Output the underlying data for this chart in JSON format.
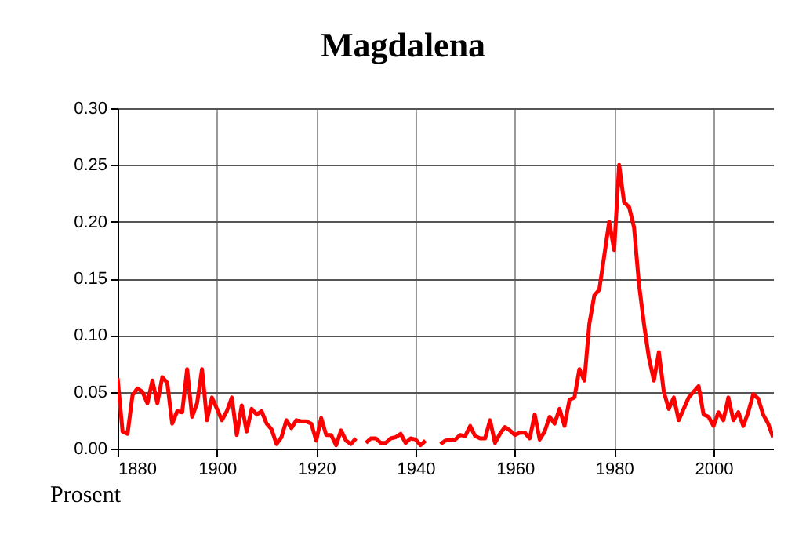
{
  "chart_data": {
    "type": "line",
    "title": "Magdalena",
    "annotations": [
      "Prosent"
    ],
    "x": [
      1880,
      1881,
      1882,
      1883,
      1884,
      1885,
      1886,
      1887,
      1888,
      1889,
      1890,
      1891,
      1892,
      1893,
      1894,
      1895,
      1896,
      1897,
      1898,
      1899,
      1900,
      1901,
      1902,
      1903,
      1904,
      1905,
      1906,
      1907,
      1908,
      1909,
      1910,
      1911,
      1912,
      1913,
      1914,
      1915,
      1916,
      1917,
      1918,
      1919,
      1920,
      1921,
      1922,
      1923,
      1924,
      1925,
      1926,
      1927,
      1928,
      1929,
      1930,
      1931,
      1932,
      1933,
      1934,
      1935,
      1936,
      1937,
      1938,
      1939,
      1940,
      1941,
      1942,
      1943,
      1944,
      1945,
      1946,
      1947,
      1948,
      1949,
      1950,
      1951,
      1952,
      1953,
      1954,
      1955,
      1956,
      1957,
      1958,
      1959,
      1960,
      1961,
      1962,
      1963,
      1964,
      1965,
      1966,
      1967,
      1968,
      1969,
      1970,
      1971,
      1972,
      1973,
      1974,
      1975,
      1976,
      1977,
      1978,
      1979,
      1980,
      1981,
      1982,
      1983,
      1984,
      1985,
      1986,
      1987,
      1988,
      1989,
      1990,
      1991,
      1992,
      1993,
      1994,
      1995,
      1996,
      1997,
      1998,
      1999,
      2000,
      2001,
      2002,
      2003,
      2004,
      2005,
      2006,
      2007,
      2008,
      2009,
      2010,
      2011,
      2012
    ],
    "series": [
      {
        "color": "#ff0000",
        "values": [
          0.062,
          0.015,
          0.013,
          0.047,
          0.053,
          0.05,
          0.04,
          0.06,
          0.04,
          0.063,
          0.058,
          0.022,
          0.033,
          0.032,
          0.07,
          0.028,
          0.04,
          0.07,
          0.025,
          0.045,
          0.035,
          0.025,
          0.033,
          0.045,
          0.012,
          0.038,
          0.015,
          0.035,
          0.03,
          0.033,
          0.022,
          0.017,
          0.004,
          0.01,
          0.025,
          0.018,
          0.025,
          0.024,
          0.024,
          0.022,
          0.007,
          0.027,
          0.012,
          0.012,
          0.003,
          0.016,
          0.007,
          0.004,
          0.009,
          null,
          0.005,
          0.009,
          0.009,
          0.005,
          0.005,
          0.009,
          0.01,
          0.013,
          0.005,
          0.009,
          0.008,
          0.003,
          0.007,
          null,
          null,
          0.004,
          0.007,
          0.008,
          0.008,
          0.012,
          0.011,
          0.02,
          0.011,
          0.009,
          0.009,
          0.025,
          0.005,
          0.013,
          0.019,
          0.016,
          0.012,
          0.014,
          0.014,
          0.009,
          0.03,
          0.008,
          0.015,
          0.028,
          0.022,
          0.035,
          0.02,
          0.043,
          0.045,
          0.07,
          0.06,
          0.11,
          0.135,
          0.14,
          0.17,
          0.2,
          0.175,
          0.25,
          0.217,
          0.213,
          0.195,
          0.145,
          0.11,
          0.08,
          0.06,
          0.085,
          0.05,
          0.035,
          0.045,
          0.025,
          0.035,
          0.045,
          0.05,
          0.055,
          0.03,
          0.028,
          0.02,
          0.032,
          0.025,
          0.045,
          0.025,
          0.032,
          0.02,
          0.032,
          0.048,
          0.044,
          0.03,
          0.022,
          0.01
        ]
      }
    ],
    "xlim": [
      1880,
      2012
    ],
    "xticks": [
      1880,
      1900,
      1920,
      1940,
      1960,
      1980,
      2000
    ],
    "ylim": [
      0,
      0.3
    ],
    "yticks": [
      {
        "value": 0,
        "label": "0.00"
      },
      {
        "value": 0.05,
        "label": "0.05"
      },
      {
        "value": 0.1,
        "label": "0.10"
      },
      {
        "value": 0.15,
        "label": "0.15"
      },
      {
        "value": 0.2,
        "label": "0.20"
      },
      {
        "value": 0.25,
        "label": "0.25"
      },
      {
        "value": 0.3,
        "label": "0.30"
      }
    ],
    "grid": true,
    "marker": "none",
    "line_style": "solid"
  }
}
